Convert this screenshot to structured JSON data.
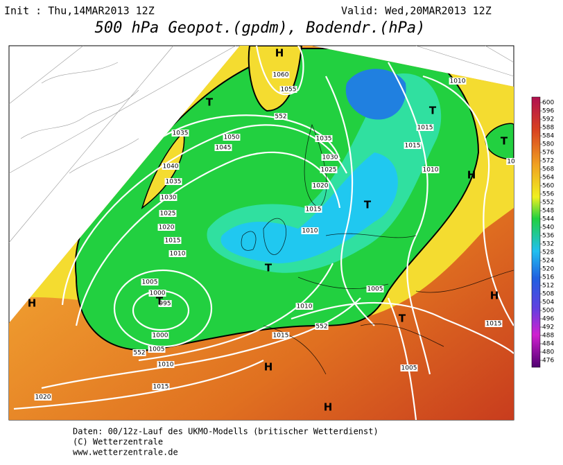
{
  "header": {
    "init": "Init : Thu,14MAR2013 12Z",
    "valid": "Valid: Wed,20MAR2013 12Z",
    "title": "500 hPa Geopot.(gpdm), Bodendr.(hPa)"
  },
  "map": {
    "isobar_labels": [
      "1060",
      "1055",
      "1050",
      "1045",
      "1035",
      "1040",
      "1035",
      "1030",
      "1025",
      "1020",
      "1015",
      "1010",
      "1005",
      "1000",
      "995",
      "1000",
      "1005",
      "1010",
      "1015",
      "1020",
      "1035",
      "1030",
      "1025",
      "1020",
      "1015",
      "1010",
      "1010",
      "1015",
      "1015",
      "1010",
      "1005",
      "1010",
      "1015",
      "1015",
      "1005",
      "552",
      "552",
      "552",
      "10"
    ],
    "pressure_systems": [
      "H",
      "T",
      "T",
      "T",
      "H",
      "T",
      "T",
      "T",
      "H",
      "H",
      "T",
      "H",
      "H"
    ]
  },
  "colorbar": {
    "labels": [
      "600",
      "596",
      "592",
      "588",
      "584",
      "580",
      "576",
      "572",
      "568",
      "564",
      "560",
      "556",
      "552",
      "548",
      "544",
      "540",
      "536",
      "532",
      "528",
      "524",
      "520",
      "516",
      "512",
      "508",
      "504",
      "500",
      "496",
      "492",
      "488",
      "484",
      "480",
      "476"
    ]
  },
  "footer": {
    "lines": [
      "Daten: 00/12z-Lauf des UKMO-Modells (britischer Wetterdienst)",
      "(C) Wetterzentrale",
      "www.wetterzentrale.de"
    ]
  }
}
